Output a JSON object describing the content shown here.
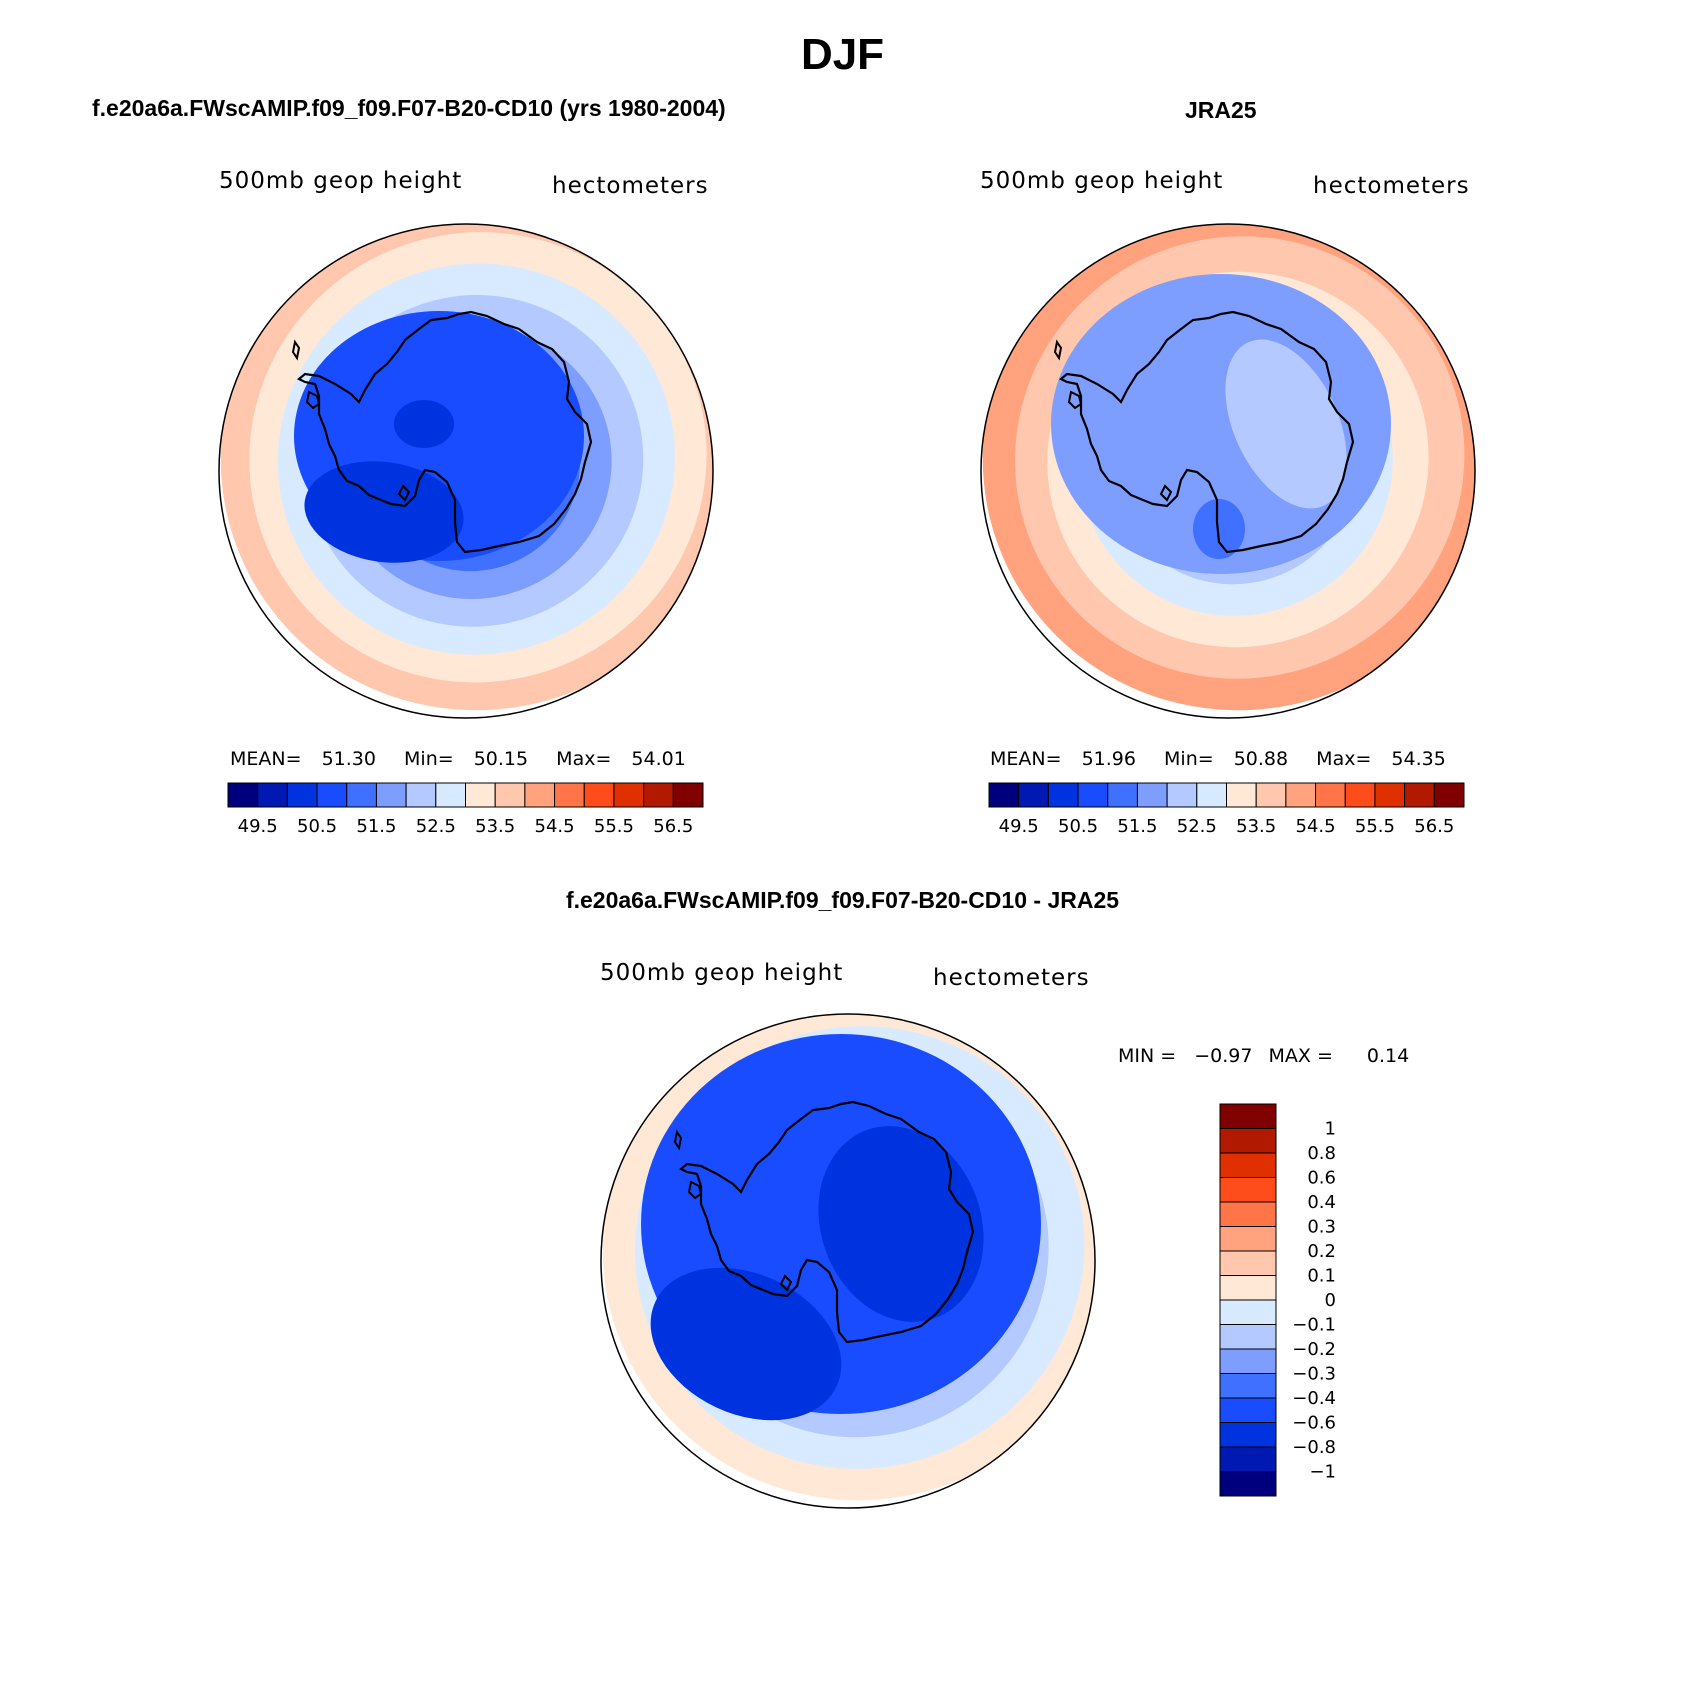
{
  "title": "DJF",
  "colors": {
    "model_palette": [
      "#00007f",
      "#0019b2",
      "#0033e0",
      "#1a4cff",
      "#4070ff",
      "#7d9dff",
      "#b3c9ff",
      "#d8eaff",
      "#ffe8d6",
      "#ffc7ad",
      "#ffa27d",
      "#ff7547",
      "#ff4c1a",
      "#e03000",
      "#b21a00",
      "#800000"
    ],
    "diff_palette": [
      "#00007f",
      "#0019b2",
      "#0033e0",
      "#1a4cff",
      "#4070ff",
      "#7d9dff",
      "#b3c9ff",
      "#d8eaff",
      "#ffe8d6",
      "#ffc7ad",
      "#ffa27d",
      "#ff7547",
      "#ff4c1a",
      "#e03000",
      "#b21a00",
      "#800000"
    ]
  },
  "panels": [
    {
      "title": "f.e20a6a.FWscAMIP.f09_f09.F07-B20-CD10 (yrs 1980-2004)",
      "variable": "500mb geop height",
      "units": "hectometers",
      "stats": {
        "mean_label": "MEAN=",
        "mean": "51.30",
        "min_label": "Min=",
        "min": "50.15",
        "max_label": "Max=",
        "max": "54.01"
      }
    },
    {
      "title": "JRA25",
      "variable": "500mb geop height",
      "units": "hectometers",
      "stats": {
        "mean_label": "MEAN=",
        "mean": "51.96",
        "min_label": "Min=",
        "min": "50.88",
        "max_label": "Max=",
        "max": "54.35"
      }
    },
    {
      "title": "f.e20a6a.FWscAMIP.f09_f09.F07-B20-CD10 - JRA25",
      "variable": "500mb geop height",
      "units": "hectometers",
      "stats": {
        "min_label": "MIN =",
        "min": "−0.97",
        "max_label": "MAX =",
        "max": "0.14"
      }
    }
  ],
  "chart_data": [
    {
      "type": "heatmap",
      "projection": "south-polar stereographic",
      "title": "f.e20a6a.FWscAMIP.f09_f09.F07-B20-CD10 (yrs 1980-2004)",
      "field": "500mb geop height",
      "units": "hectometers",
      "mean": 51.3,
      "min": 50.15,
      "max": 54.01,
      "colorbar_ticks": [
        "49.5",
        "50.5",
        "51.5",
        "52.5",
        "53.5",
        "54.5",
        "55.5",
        "56.5"
      ],
      "contour_levels": [
        49.5,
        50.0,
        50.5,
        51.0,
        51.5,
        52.0,
        52.5,
        53.0,
        53.5,
        54.0,
        54.5,
        55.0,
        55.5,
        56.0,
        56.5
      ],
      "approx_field_rings": [
        50.3,
        50.7,
        51.2,
        51.7,
        52.2,
        52.7,
        53.2,
        53.7
      ]
    },
    {
      "type": "heatmap",
      "projection": "south-polar stereographic",
      "title": "JRA25",
      "field": "500mb geop height",
      "units": "hectometers",
      "mean": 51.96,
      "min": 50.88,
      "max": 54.35,
      "colorbar_ticks": [
        "49.5",
        "50.5",
        "51.5",
        "52.5",
        "53.5",
        "54.5",
        "55.5",
        "56.5"
      ],
      "contour_levels": [
        49.5,
        50.0,
        50.5,
        51.0,
        51.5,
        52.0,
        52.5,
        53.0,
        53.5,
        54.0,
        54.5,
        55.0,
        55.5,
        56.0,
        56.5
      ],
      "approx_field_rings": [
        51.2,
        51.7,
        52.2,
        52.7,
        53.2,
        53.7,
        54.2
      ]
    },
    {
      "type": "heatmap",
      "projection": "south-polar stereographic",
      "title": "f.e20a6a.FWscAMIP.f09_f09.F07-B20-CD10 - JRA25",
      "field": "500mb geop height",
      "units": "hectometers",
      "min": -0.97,
      "max": 0.14,
      "colorbar_ticks": [
        "1",
        "0.8",
        "0.6",
        "0.4",
        "0.3",
        "0.2",
        "0.1",
        "0",
        "−0.1",
        "−0.2",
        "−0.3",
        "−0.4",
        "−0.6",
        "−0.8",
        "−1"
      ],
      "contour_levels": [
        -1,
        -0.8,
        -0.6,
        -0.4,
        -0.3,
        -0.2,
        -0.1,
        0,
        0.1,
        0.2,
        0.3,
        0.4,
        0.6,
        0.8,
        1
      ],
      "approx_field_rings": [
        -0.7,
        -0.5,
        -0.35,
        -0.25,
        -0.15,
        -0.05,
        0.05
      ]
    }
  ]
}
